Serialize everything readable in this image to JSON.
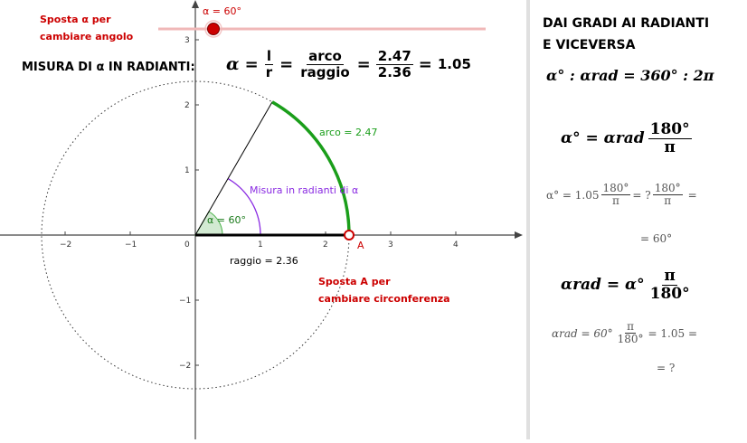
{
  "labels": {
    "slider_hint_line1": "Sposta α per",
    "slider_hint_line2": "cambiare angolo",
    "slider_value": "α = 60°",
    "measure_title": "MISURA DI α IN RADIANTI:",
    "point_hint_line1": "Sposta A per",
    "point_hint_line2": "cambiare circonferenza",
    "arc_label": "arco = 2.47",
    "radians_label": "Misura in radianti di α",
    "angle_label": "α = 60°",
    "radius_label": "raggio = 2.36",
    "point_a": "A"
  },
  "formula_main": {
    "lhs": "α",
    "eq1": "=",
    "num1": "l",
    "den1": "r",
    "eq2": "=",
    "num2": "arco",
    "den2": "raggio",
    "eq3": "=",
    "num3": "2.47",
    "den3": "2.36",
    "eq4": "=",
    "result": "1.05"
  },
  "sidebar": {
    "title_line1": "DAI GRADI AI RADIANTI",
    "title_line2": "E VICEVERSA",
    "proportion": "α° : αrad = 360° : 2π",
    "f1_lhs": "α° = αrad",
    "f1_num": "180°",
    "f1_den": "π",
    "c1_lhs": "α° = 1.05",
    "c1_num": "180°",
    "c1_den": "π",
    "c1_mid": "= ?",
    "c1_num2": "180°",
    "c1_den2": "π",
    "c1_end": "=",
    "c1_result": "= 60°",
    "f2_lhs": "αrad = α°",
    "f2_num": "π",
    "f2_den": "180°",
    "c2_lhs": "αrad = 60°",
    "c2_num": "π",
    "c2_den": "180°",
    "c2_mid": "= 1.05 =",
    "c2_result": "= ?"
  },
  "geometry": {
    "angle_deg": 60,
    "radius": 2.36,
    "arc_length": 2.47,
    "alpha_rad": 1.05,
    "slider_value_units": 0.6
  },
  "axes": {
    "x_ticks": [
      "−2",
      "−1",
      "0",
      "1",
      "2",
      "3",
      "4"
    ],
    "y_ticks": [
      "3",
      "2",
      "1",
      "−1",
      "−2"
    ]
  },
  "colors": {
    "hint_red": "#cc0000",
    "arc_green": "#1a9e1a",
    "radians_purple": "#8a2be2",
    "slider_line": "#f0b8b8",
    "slider_dot": "#cc0000"
  }
}
